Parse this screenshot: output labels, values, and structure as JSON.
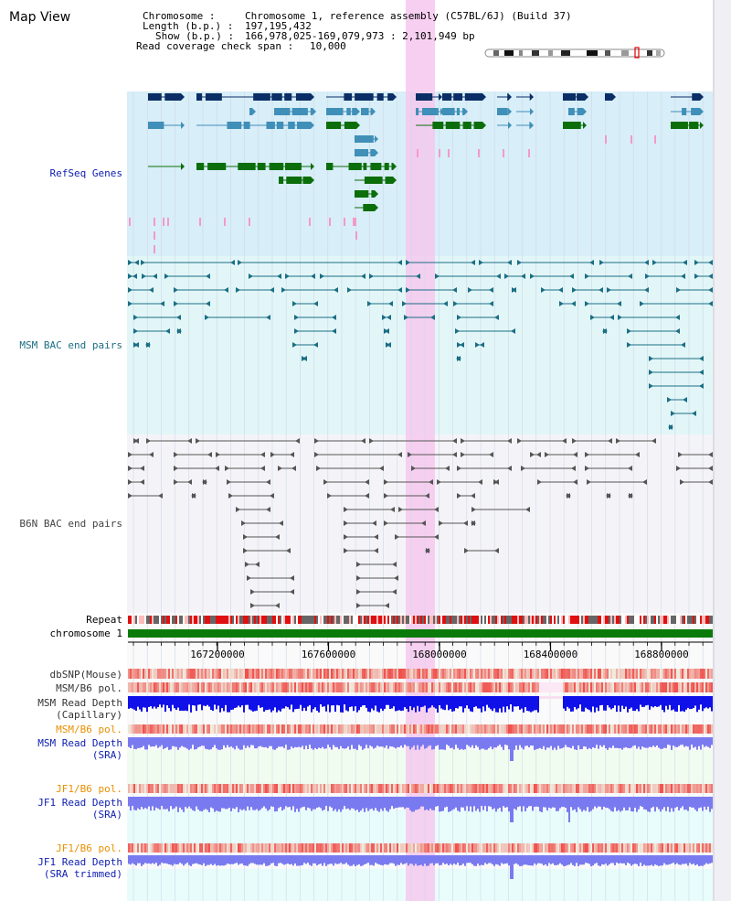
{
  "view": {
    "title": "Map View",
    "info": {
      "chromosome_key": "Chromosome    :",
      "chromosome_val": "Chromosome 1, reference assembly (C57BL/6J) (Build 37)",
      "length_key": "Length (b.p.) :",
      "length_val": "197,195,432",
      "show_key": "Show (b.p.) :",
      "show_val": "166,978,025-169,079,973 : 2,101,949 bp",
      "span_key": "Read coverage check span :",
      "span_val": "10,000"
    }
  },
  "tracks": {
    "refseq": "RefSeq Genes",
    "msm_bac": "MSM BAC end pairs",
    "b6n_bac": "B6N BAC end pairs",
    "repeat": "Repeat",
    "chromosome": "chromosome 1",
    "dbsnp": "dbSNP(Mouse)",
    "msm_b6_pol": "MSM/B6 pol.",
    "msm_depth_cap_1": "MSM Read Depth",
    "msm_depth_cap_2": "(Capillary)",
    "msm_b6_pol_sra": "MSM/B6 pol.",
    "msm_depth_sra_1": "MSM Read Depth",
    "msm_depth_sra_2": "(SRA)",
    "jf1_b6_pol": "JF1/B6 pol.",
    "jf1_depth_sra_1": "JF1 Read Depth",
    "jf1_depth_sra_2": "(SRA)",
    "jf1_b6_pol_trim": "JF1/B6 pol.",
    "jf1_depth_trim_1": "JF1 Read Depth",
    "jf1_depth_trim_2": "(SRA trimmed)"
  },
  "axis": {
    "ticks": [
      {
        "pos": 167200000,
        "label": "167200000"
      },
      {
        "pos": 167600000,
        "label": "167600000"
      },
      {
        "pos": 168000000,
        "label": "168000000"
      },
      {
        "pos": 168400000,
        "label": "168400000"
      },
      {
        "pos": 168800000,
        "label": "168800000"
      }
    ]
  },
  "colors": {
    "refseq_bg": "#d8eef8",
    "msm_bg": "#e2f6f8",
    "b6n_bg": "#f4f4f8",
    "highlight": "#f6c8ee",
    "dark_gene": "#0b2e66",
    "light_gene": "#3f8fb8",
    "green_gene": "#0b6e0b",
    "pink_mark": "#f49ac8",
    "msm_bac": "#1b6e84",
    "b6n_bac": "#555555",
    "chrom": "#0a7a0a",
    "depth_blue": "#1010e8",
    "depth_light": "#7a7af0"
  }
}
